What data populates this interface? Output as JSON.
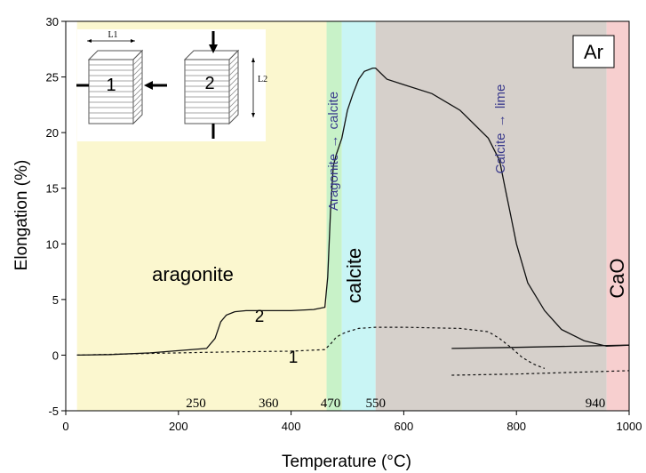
{
  "chart_data": {
    "type": "line",
    "xlabel": "Temperature (°C)",
    "ylabel": "Elongation (%)",
    "xlim": [
      0,
      1000
    ],
    "ylim": [
      -5,
      30
    ],
    "x_ticks": [
      0,
      200,
      400,
      600,
      800,
      1000
    ],
    "y_ticks": [
      -5,
      0,
      5,
      10,
      15,
      20,
      25,
      30
    ],
    "grid": false,
    "regions": [
      {
        "label": "aragonite",
        "x_start": 20,
        "x_end": 463,
        "color": "#fbf7cf"
      },
      {
        "label": "",
        "x_start": 463,
        "x_end": 490,
        "color": "#c8f2c8"
      },
      {
        "label": "calcite",
        "x_start": 490,
        "x_end": 550,
        "color": "#c9f5f5"
      },
      {
        "label": "",
        "x_start": 550,
        "x_end": 960,
        "color": "#d6d0cb"
      },
      {
        "label": "CaO",
        "x_start": 960,
        "x_end": 1000,
        "color": "#f7cfcf"
      }
    ],
    "temperature_marks": [
      "250",
      "360",
      "470",
      "550",
      "940"
    ],
    "temperature_mark_values": [
      250,
      360,
      470,
      550,
      940
    ],
    "annotations": {
      "atmosphere": "Ar",
      "transition1_from": "Aragonite",
      "transition1_arrow": "→",
      "transition1_to": "calcite",
      "transition2_from": "Calcite",
      "transition2_arrow": "→",
      "transition2_to": "lime"
    },
    "series": [
      {
        "name": "2",
        "style": "solid",
        "x": [
          20,
          80,
          150,
          200,
          250,
          265,
          275,
          285,
          300,
          320,
          360,
          400,
          440,
          460,
          465,
          470,
          475,
          480,
          490,
          500,
          510,
          520,
          530,
          545,
          550,
          570,
          600,
          650,
          700,
          750,
          770,
          780,
          790,
          800,
          820,
          850,
          880,
          920,
          960,
          1000
        ],
        "y": [
          0,
          0.05,
          0.2,
          0.4,
          0.6,
          1.5,
          3.0,
          3.6,
          3.9,
          4.0,
          4.0,
          4.0,
          4.1,
          4.3,
          7.0,
          13.0,
          17.0,
          18.0,
          19.5,
          22.0,
          23.5,
          24.8,
          25.5,
          25.8,
          25.8,
          24.8,
          24.3,
          23.5,
          22.0,
          19.5,
          17.5,
          15.0,
          12.5,
          10.0,
          6.5,
          4.0,
          2.3,
          1.3,
          0.8,
          0.9
        ]
      },
      {
        "name": "1",
        "style": "dashed",
        "x": [
          20,
          100,
          200,
          300,
          400,
          460,
          470,
          480,
          490,
          500,
          520,
          550,
          600,
          700,
          750,
          770,
          790,
          810,
          830,
          850
        ],
        "y": [
          0,
          0.1,
          0.2,
          0.3,
          0.35,
          0.5,
          1.0,
          1.6,
          1.9,
          2.1,
          2.4,
          2.5,
          2.5,
          2.4,
          2.1,
          1.5,
          0.7,
          -0.2,
          -0.8,
          -1.2
        ]
      },
      {
        "name": "",
        "style": "solid",
        "x": [
          685,
          800,
          900,
          1000
        ],
        "y": [
          0.6,
          0.7,
          0.8,
          0.9
        ]
      },
      {
        "name": "",
        "style": "dashed",
        "x": [
          685,
          800,
          900,
          1000
        ],
        "y": [
          -1.8,
          -1.7,
          -1.55,
          -1.4
        ]
      }
    ],
    "inset": {
      "sample1_label": "1",
      "sample2_label": "2",
      "length1_label": "L1",
      "length2_label": "L2"
    }
  }
}
